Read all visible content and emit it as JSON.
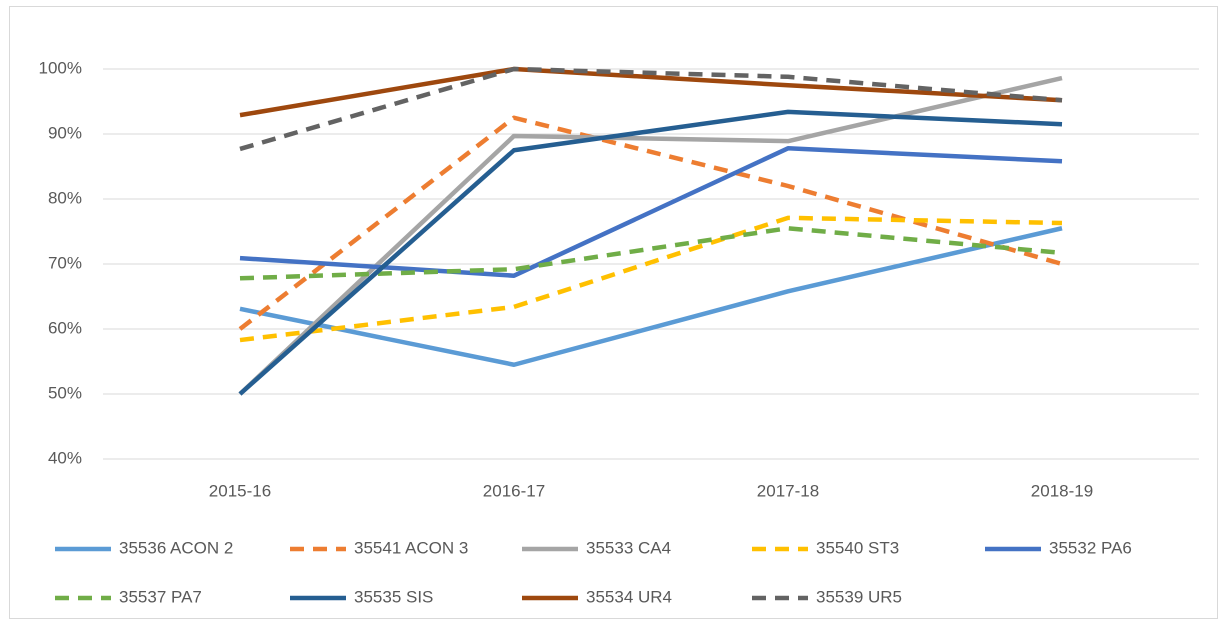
{
  "chart_data": {
    "type": "line",
    "categories": [
      "2015-16",
      "2016-17",
      "2017-18",
      "2018-19"
    ],
    "ylim": [
      40,
      100
    ],
    "yticks": [
      {
        "value": 40,
        "label": "40%"
      },
      {
        "value": 50,
        "label": "50%"
      },
      {
        "value": 60,
        "label": "60%"
      },
      {
        "value": 70,
        "label": "70%"
      },
      {
        "value": 80,
        "label": "80%"
      },
      {
        "value": 90,
        "label": "90%"
      },
      {
        "value": 100,
        "label": "100%"
      }
    ],
    "grid": true,
    "legend": "bottom",
    "series": [
      {
        "name": "35536 ACON 2",
        "color": "#5b9bd5",
        "dashed": false,
        "values": [
          63.1,
          54.5,
          65.8,
          75.5
        ]
      },
      {
        "name": "35541 ACON 3",
        "color": "#ed7d31",
        "dashed": true,
        "values": [
          60,
          92.5,
          82,
          70
        ]
      },
      {
        "name": "35533 CA4",
        "color": "#a5a5a5",
        "dashed": false,
        "values": [
          50,
          89.7,
          88.9,
          98.6
        ]
      },
      {
        "name": "35540 ST3",
        "color": "#ffc000",
        "dashed": true,
        "values": [
          58.3,
          63.4,
          77.1,
          76.3
        ]
      },
      {
        "name": "35532 PA6",
        "color": "#4472c4",
        "dashed": false,
        "values": [
          70.9,
          68.2,
          87.8,
          85.8
        ]
      },
      {
        "name": "35537 PA7",
        "color": "#70ad47",
        "dashed": true,
        "values": [
          67.8,
          69.2,
          75.5,
          71.7
        ]
      },
      {
        "name": "35535 SIS",
        "color": "#255e91",
        "dashed": false,
        "values": [
          50,
          87.5,
          93.4,
          91.5
        ]
      },
      {
        "name": "35534 UR4",
        "color": "#9e480e",
        "dashed": false,
        "values": [
          92.9,
          100,
          97.5,
          95.2
        ]
      },
      {
        "name": "35539 UR5",
        "color": "#636363",
        "dashed": true,
        "values": [
          87.7,
          100,
          98.8,
          95.2
        ]
      }
    ]
  }
}
